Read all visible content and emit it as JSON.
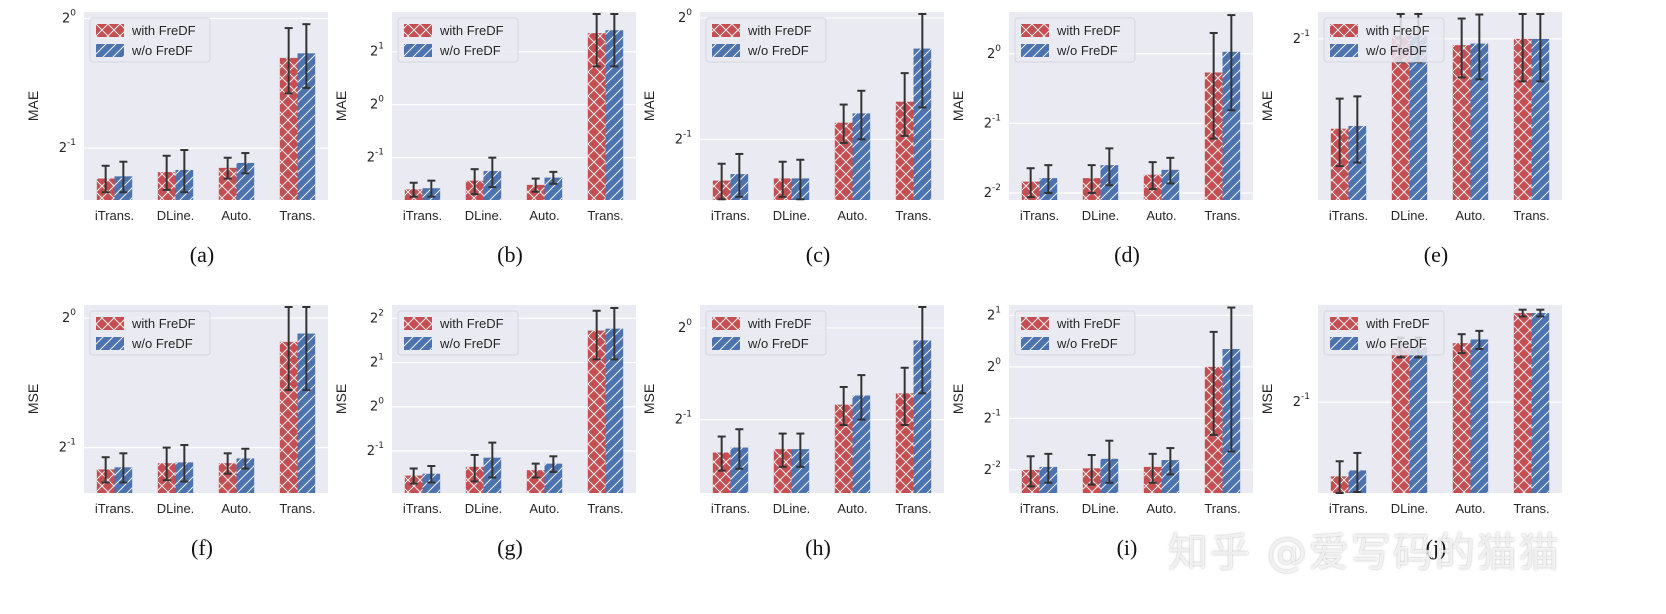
{
  "colors": {
    "with": "#c44e52",
    "without": "#4c72b0",
    "panel_bg": "#eaeaf2",
    "grid": "#ffffff",
    "err": "#333333"
  },
  "legend": {
    "with": "with FreDF",
    "without": "w/o FreDF"
  },
  "watermark": "知乎 @爱写码的猫猫",
  "chart_data": [
    {
      "id": "a",
      "caption": "(a)",
      "type": "bar",
      "ylabel": "MAE",
      "log_base": 2,
      "ylim_exp": [
        -1.4,
        0.05
      ],
      "yticks": [
        {
          "exp": -1,
          "label": "-1"
        },
        {
          "exp": 0,
          "label": "0"
        }
      ],
      "categories": [
        "iTrans.",
        "DLine.",
        "Auto.",
        "Trans."
      ],
      "series": [
        {
          "name": "with FreDF",
          "values": [
            0.425,
            0.44,
            0.45,
            0.81
          ],
          "err": [
            0.03,
            0.04,
            0.025,
            0.14
          ]
        },
        {
          "name": "w/o FreDF",
          "values": [
            0.43,
            0.445,
            0.462,
            0.83
          ],
          "err": [
            0.035,
            0.05,
            0.025,
            0.14
          ]
        }
      ]
    },
    {
      "id": "b",
      "caption": "(b)",
      "type": "bar",
      "ylabel": "MAE",
      "log_base": 2,
      "ylim_exp": [
        -1.8,
        1.75
      ],
      "yticks": [
        {
          "exp": -1,
          "label": "-1"
        },
        {
          "exp": 0,
          "label": "0"
        },
        {
          "exp": 1,
          "label": "1"
        }
      ],
      "categories": [
        "iTrans.",
        "DLine.",
        "Auto.",
        "Trans."
      ],
      "series": [
        {
          "name": "with FreDF",
          "values": [
            0.33,
            0.37,
            0.35,
            2.55
          ],
          "err": [
            0.03,
            0.06,
            0.03,
            0.9
          ]
        },
        {
          "name": "w/o FreDF",
          "values": [
            0.335,
            0.42,
            0.385,
            2.65
          ],
          "err": [
            0.035,
            0.08,
            0.03,
            1.0
          ]
        }
      ]
    },
    {
      "id": "c",
      "caption": "(c)",
      "type": "bar",
      "ylabel": "MAE",
      "log_base": 2,
      "ylim_exp": [
        -1.5,
        0.05
      ],
      "yticks": [
        {
          "exp": -1,
          "label": "-1"
        },
        {
          "exp": 0,
          "label": "0"
        }
      ],
      "categories": [
        "iTrans.",
        "DLine.",
        "Auto.",
        "Trans."
      ],
      "series": [
        {
          "name": "with FreDF",
          "values": [
            0.395,
            0.4,
            0.55,
            0.62
          ],
          "err": [
            0.04,
            0.04,
            0.06,
            0.11
          ]
        },
        {
          "name": "w/o FreDF",
          "values": [
            0.41,
            0.4,
            0.58,
            0.84
          ],
          "err": [
            0.05,
            0.045,
            0.08,
            0.24
          ]
        }
      ]
    },
    {
      "id": "d",
      "caption": "(d)",
      "type": "bar",
      "ylabel": "MAE",
      "log_base": 2,
      "ylim_exp": [
        -2.1,
        0.6
      ],
      "yticks": [
        {
          "exp": -2,
          "label": "-2"
        },
        {
          "exp": -1,
          "label": "-1"
        },
        {
          "exp": 0,
          "label": "0"
        }
      ],
      "categories": [
        "iTrans.",
        "DLine.",
        "Auto.",
        "Trans."
      ],
      "series": [
        {
          "name": "with FreDF",
          "values": [
            0.28,
            0.29,
            0.3,
            0.83
          ],
          "err": [
            0.04,
            0.04,
            0.04,
            0.4
          ]
        },
        {
          "name": "w/o FreDF",
          "values": [
            0.29,
            0.33,
            0.315,
            1.02
          ],
          "err": [
            0.04,
            0.06,
            0.04,
            0.45
          ]
        }
      ]
    },
    {
      "id": "e",
      "caption": "(e)",
      "type": "bar",
      "ylabel": "MAE",
      "log_base": 2,
      "ylim_exp": [
        -2.5,
        -0.75
      ],
      "yticks": [
        {
          "exp": -1,
          "label": "-1"
        }
      ],
      "categories": [
        "iTrans.",
        "DLine.",
        "Auto.",
        "Trans."
      ],
      "series": [
        {
          "name": "with FreDF",
          "values": [
            0.28,
            0.51,
            0.48,
            0.5
          ],
          "err": [
            0.06,
            0.08,
            0.09,
            0.12
          ]
        },
        {
          "name": "w/o FreDF",
          "values": [
            0.285,
            0.51,
            0.485,
            0.5
          ],
          "err": [
            0.06,
            0.08,
            0.1,
            0.12
          ]
        }
      ]
    },
    {
      "id": "f",
      "caption": "(f)",
      "type": "bar",
      "ylabel": "MSE",
      "log_base": 2,
      "ylim_exp": [
        -1.35,
        0.1
      ],
      "yticks": [
        {
          "exp": -1,
          "label": "-1"
        },
        {
          "exp": 0,
          "label": "0"
        }
      ],
      "categories": [
        "iTrans.",
        "DLine.",
        "Auto.",
        "Trans."
      ],
      "series": [
        {
          "name": "with FreDF",
          "values": [
            0.445,
            0.46,
            0.46,
            0.88
          ],
          "err": [
            0.03,
            0.04,
            0.025,
            0.2
          ]
        },
        {
          "name": "w/o FreDF",
          "values": [
            0.45,
            0.462,
            0.472,
            0.92
          ],
          "err": [
            0.035,
            0.045,
            0.025,
            0.24
          ]
        }
      ]
    },
    {
      "id": "g",
      "caption": "(g)",
      "type": "bar",
      "ylabel": "MSE",
      "log_base": 2,
      "ylim_exp": [
        -1.95,
        2.3
      ],
      "yticks": [
        {
          "exp": -1,
          "label": "-1"
        },
        {
          "exp": 0,
          "label": "0"
        },
        {
          "exp": 1,
          "label": "1"
        },
        {
          "exp": 2,
          "label": "2"
        }
      ],
      "categories": [
        "iTrans.",
        "DLine.",
        "Auto.",
        "Trans."
      ],
      "series": [
        {
          "name": "with FreDF",
          "values": [
            0.34,
            0.39,
            0.37,
            3.3
          ],
          "err": [
            0.04,
            0.08,
            0.04,
            1.2
          ]
        },
        {
          "name": "w/o FreDF",
          "values": [
            0.35,
            0.45,
            0.41,
            3.4
          ],
          "err": [
            0.045,
            0.12,
            0.05,
            1.3
          ]
        }
      ]
    },
    {
      "id": "h",
      "caption": "(h)",
      "type": "bar",
      "ylabel": "MSE",
      "log_base": 2,
      "ylim_exp": [
        -1.8,
        0.25
      ],
      "yticks": [
        {
          "exp": -1,
          "label": "-1"
        },
        {
          "exp": 0,
          "label": "0"
        }
      ],
      "categories": [
        "iTrans.",
        "DLine.",
        "Auto.",
        "Trans."
      ],
      "series": [
        {
          "name": "with FreDF",
          "values": [
            0.39,
            0.4,
            0.56,
            0.61
          ],
          "err": [
            0.05,
            0.05,
            0.08,
            0.13
          ]
        },
        {
          "name": "w/o FreDF",
          "values": [
            0.405,
            0.4,
            0.6,
            0.91
          ],
          "err": [
            0.06,
            0.05,
            0.1,
            0.3
          ]
        }
      ]
    },
    {
      "id": "i",
      "caption": "(i)",
      "type": "bar",
      "ylabel": "MSE",
      "log_base": 2,
      "ylim_exp": [
        -2.45,
        1.2
      ],
      "yticks": [
        {
          "exp": -2,
          "label": "-2"
        },
        {
          "exp": -1,
          "label": "-1"
        },
        {
          "exp": 0,
          "label": "0"
        },
        {
          "exp": 1,
          "label": "1"
        }
      ],
      "categories": [
        "iTrans.",
        "DLine.",
        "Auto.",
        "Trans."
      ],
      "series": [
        {
          "name": "with FreDF",
          "values": [
            0.25,
            0.255,
            0.26,
            1.0
          ],
          "err": [
            0.05,
            0.05,
            0.05,
            0.6
          ]
        },
        {
          "name": "w/o FreDF",
          "values": [
            0.26,
            0.29,
            0.285,
            1.27
          ],
          "err": [
            0.05,
            0.08,
            0.05,
            0.95
          ]
        }
      ]
    },
    {
      "id": "j",
      "caption": "(j)",
      "type": "bar",
      "ylabel": "MSE",
      "log_base": 2,
      "ylim_exp": [
        -2.45,
        0.55
      ],
      "yticks": [
        {
          "exp": -1,
          "label": "-1"
        }
      ],
      "categories": [
        "iTrans.",
        "DLine.",
        "Auto.",
        "Trans."
      ],
      "series": [
        {
          "name": "with FreDF",
          "values": [
            0.22,
            0.92,
            0.96,
            1.34
          ],
          "err": [
            0.04,
            0.1,
            0.1,
            0.05
          ]
        },
        {
          "name": "w/o FreDF",
          "values": [
            0.235,
            0.92,
            1.0,
            1.34
          ],
          "err": [
            0.05,
            0.1,
            0.1,
            0.05
          ]
        }
      ]
    }
  ]
}
